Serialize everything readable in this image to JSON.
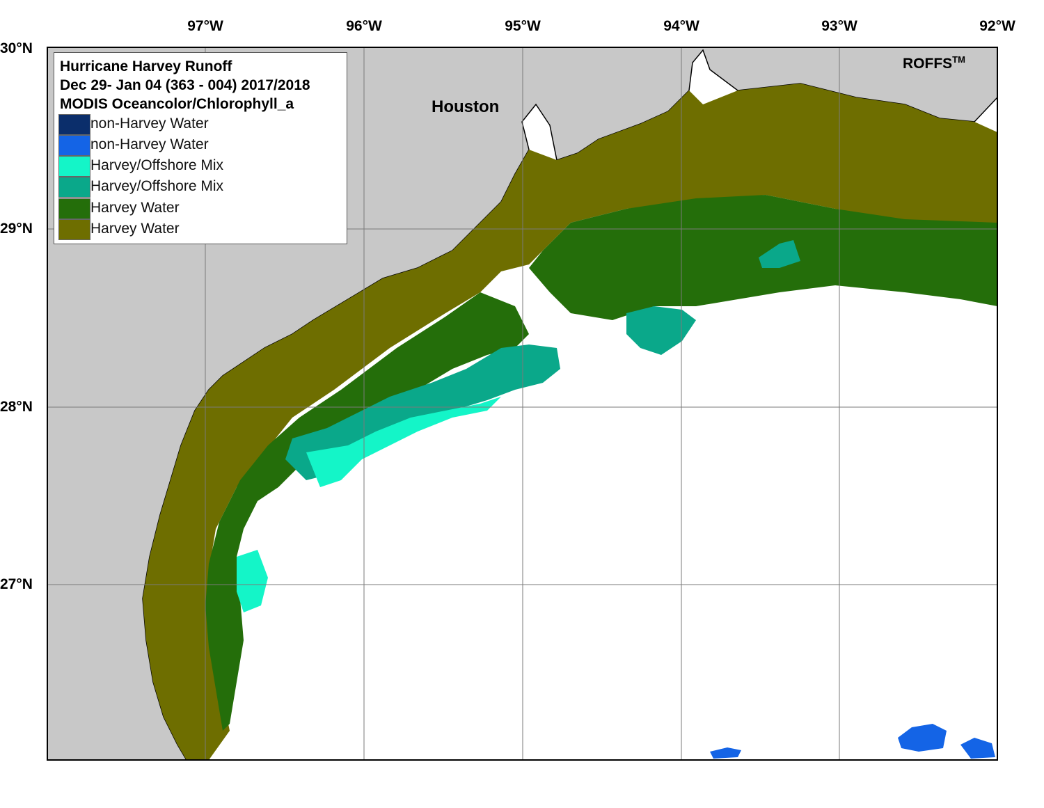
{
  "legend": {
    "title_lines": [
      "Hurricane Harvey Runoff",
      "Dec 29- Jan 04 (363 - 004) 2017/2018",
      "MODIS Oceancolor/Chlorophyll_a"
    ],
    "items": [
      {
        "label": "non-Harvey Water",
        "color": "#0b2e6b"
      },
      {
        "label": "non-Harvey Water",
        "color": "#1464e6"
      },
      {
        "label": "Harvey/Offshore Mix",
        "color": "#14f5c8"
      },
      {
        "label": "Harvey/Offshore Mix",
        "color": "#0aa88a"
      },
      {
        "label": "Harvey Water",
        "color": "#246e0a"
      },
      {
        "label": "Harvey Water",
        "color": "#6e6e00"
      }
    ]
  },
  "longitude_labels": [
    "97°W",
    "96°W",
    "95°W",
    "94°W",
    "93°W",
    "92°W"
  ],
  "latitude_labels": [
    "30°N",
    "29°N",
    "28°N",
    "27°N"
  ],
  "places": {
    "houston": "Houston"
  },
  "brand": {
    "name": "ROFFS",
    "tm": "TM"
  },
  "colors": {
    "land": "#c8c8c8",
    "ocean": "#ffffff",
    "grid": "#7a7a7a",
    "coast": "#000000"
  }
}
